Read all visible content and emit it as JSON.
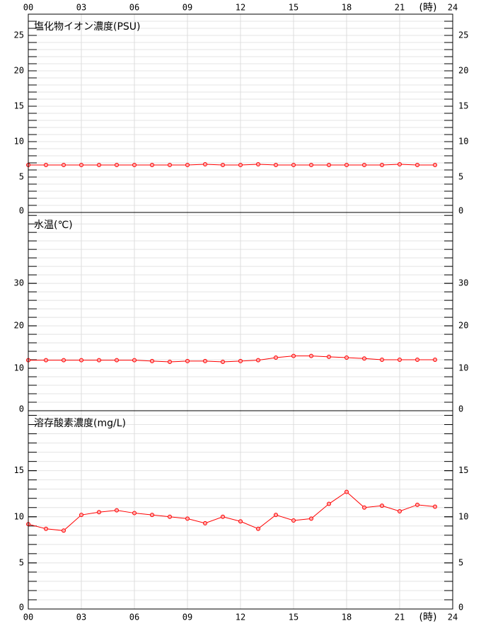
{
  "chart_data": [
    {
      "type": "line",
      "title": "塩化物イオン濃度(PSU)",
      "color": "#ff0000",
      "x": [
        0,
        1,
        2,
        3,
        4,
        5,
        6,
        7,
        8,
        9,
        10,
        11,
        12,
        13,
        14,
        15,
        16,
        17,
        18,
        19,
        20,
        21,
        22,
        23
      ],
      "values": [
        6.7,
        6.7,
        6.7,
        6.7,
        6.7,
        6.7,
        6.7,
        6.7,
        6.7,
        6.7,
        6.8,
        6.7,
        6.7,
        6.8,
        6.7,
        6.7,
        6.7,
        6.7,
        6.7,
        6.7,
        6.7,
        6.8,
        6.7,
        6.7
      ],
      "xlim": [
        0,
        24
      ],
      "xticks": [
        {
          "value": 0,
          "label": "00"
        },
        {
          "value": 3,
          "label": "03"
        },
        {
          "value": 6,
          "label": "06"
        },
        {
          "value": 9,
          "label": "09"
        },
        12,
        15,
        18,
        21,
        24
      ],
      "xlabel": "(時)",
      "ylim": [
        0,
        28
      ],
      "yticks": [
        0,
        5,
        10,
        15,
        20,
        25
      ],
      "minor_step": 1,
      "grid": true
    },
    {
      "type": "line",
      "title": "水温(℃)",
      "color": "#ff0000",
      "x": [
        0,
        1,
        2,
        3,
        4,
        5,
        6,
        7,
        8,
        9,
        10,
        11,
        12,
        13,
        14,
        15,
        16,
        17,
        18,
        19,
        20,
        21,
        22,
        23
      ],
      "values": [
        11.9,
        11.9,
        11.9,
        11.9,
        11.9,
        11.9,
        11.9,
        11.7,
        11.5,
        11.7,
        11.7,
        11.5,
        11.7,
        11.9,
        12.5,
        12.9,
        12.9,
        12.7,
        12.5,
        12.3,
        12.0,
        12.0,
        12.0,
        12.0
      ],
      "xlim": [
        0,
        24
      ],
      "xticks": [
        {
          "value": 0,
          "label": "00"
        },
        {
          "value": 3,
          "label": "03"
        },
        {
          "value": 6,
          "label": "06"
        },
        {
          "value": 9,
          "label": "09"
        },
        12,
        15,
        18,
        21,
        24
      ],
      "ylim": [
        0,
        46.7
      ],
      "yticks": [
        0,
        10,
        20,
        30
      ],
      "minor_step": 2,
      "grid": true
    },
    {
      "type": "line",
      "title": "溶存酸素濃度(mg/L)",
      "color": "#ff0000",
      "x": [
        0,
        1,
        2,
        3,
        4,
        5,
        6,
        7,
        8,
        9,
        10,
        11,
        12,
        13,
        14,
        15,
        16,
        17,
        18,
        19,
        20,
        21,
        22,
        23
      ],
      "values": [
        9.2,
        8.7,
        8.5,
        10.2,
        10.5,
        10.7,
        10.4,
        10.2,
        10.0,
        9.8,
        9.3,
        10.0,
        9.5,
        8.7,
        10.2,
        9.6,
        9.8,
        11.4,
        12.7,
        11.0,
        11.2,
        10.6,
        11.3,
        11.1
      ],
      "xlim": [
        0,
        24
      ],
      "xticks": [
        {
          "value": 0,
          "label": "00"
        },
        {
          "value": 3,
          "label": "03"
        },
        {
          "value": 6,
          "label": "06"
        },
        {
          "value": 9,
          "label": "09"
        },
        12,
        15,
        18,
        21,
        24
      ],
      "xlabel": "(時)",
      "ylim": [
        0,
        21.5
      ],
      "yticks": [
        0,
        5,
        10,
        15
      ],
      "minor_step": 1,
      "grid": true
    }
  ]
}
